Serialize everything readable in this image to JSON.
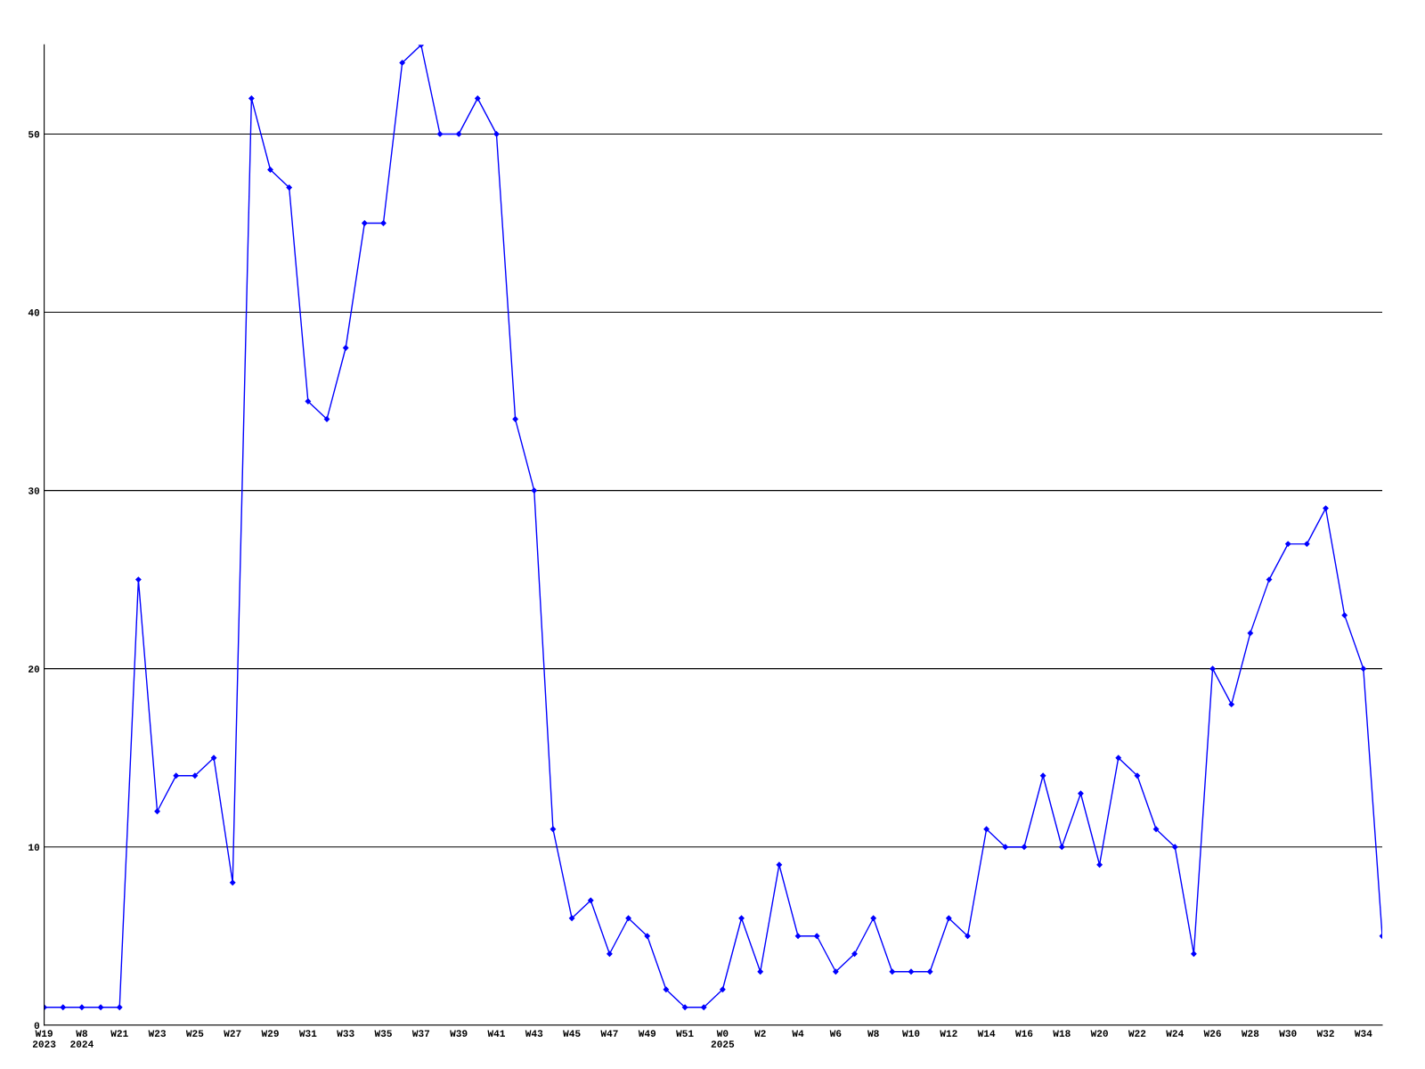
{
  "chart_data": {
    "type": "line",
    "categories": [
      "W19\n2023",
      null,
      "W8\n2024",
      null,
      "W21",
      null,
      "W23",
      null,
      "W25",
      null,
      "W27",
      null,
      "W29",
      null,
      "W31",
      null,
      "W33",
      null,
      "W35",
      null,
      "W37",
      null,
      "W39",
      null,
      "W41",
      null,
      "W43",
      null,
      "W45",
      null,
      "W47",
      null,
      "W49",
      null,
      "W51",
      null,
      "W0\n2025",
      null,
      "W2",
      null,
      "W4",
      null,
      "W6",
      null,
      "W8",
      null,
      "W10",
      null,
      "W12",
      null,
      "W14",
      null,
      "W16",
      null,
      "W18",
      null,
      "W20",
      null,
      "W22",
      null,
      "W24",
      null,
      "W26",
      null,
      "W28",
      null,
      "W30",
      null,
      "W32",
      null,
      "W34",
      null
    ],
    "series": [
      {
        "color": "#0000ff",
        "values": [
          1,
          1,
          1,
          1,
          1,
          25,
          12,
          14,
          14,
          15,
          8,
          52,
          48,
          47,
          35,
          34,
          38,
          45,
          45,
          54,
          55,
          50,
          50,
          52,
          50,
          34,
          30,
          11,
          6,
          7,
          4,
          6,
          5,
          2,
          1,
          1,
          2,
          6,
          3,
          9,
          5,
          5,
          3,
          4,
          6,
          3,
          3,
          3,
          6,
          5,
          11,
          10,
          10,
          14,
          10,
          13,
          9,
          15,
          14,
          11,
          10,
          4,
          20,
          18,
          22,
          25,
          27,
          27,
          29,
          23,
          20,
          5
        ]
      }
    ],
    "ylim": [
      0,
      55
    ],
    "yticks": [
      0,
      10,
      20,
      30,
      40,
      50
    ],
    "grid": "y",
    "marker": "diamond",
    "line_style": "solid"
  }
}
